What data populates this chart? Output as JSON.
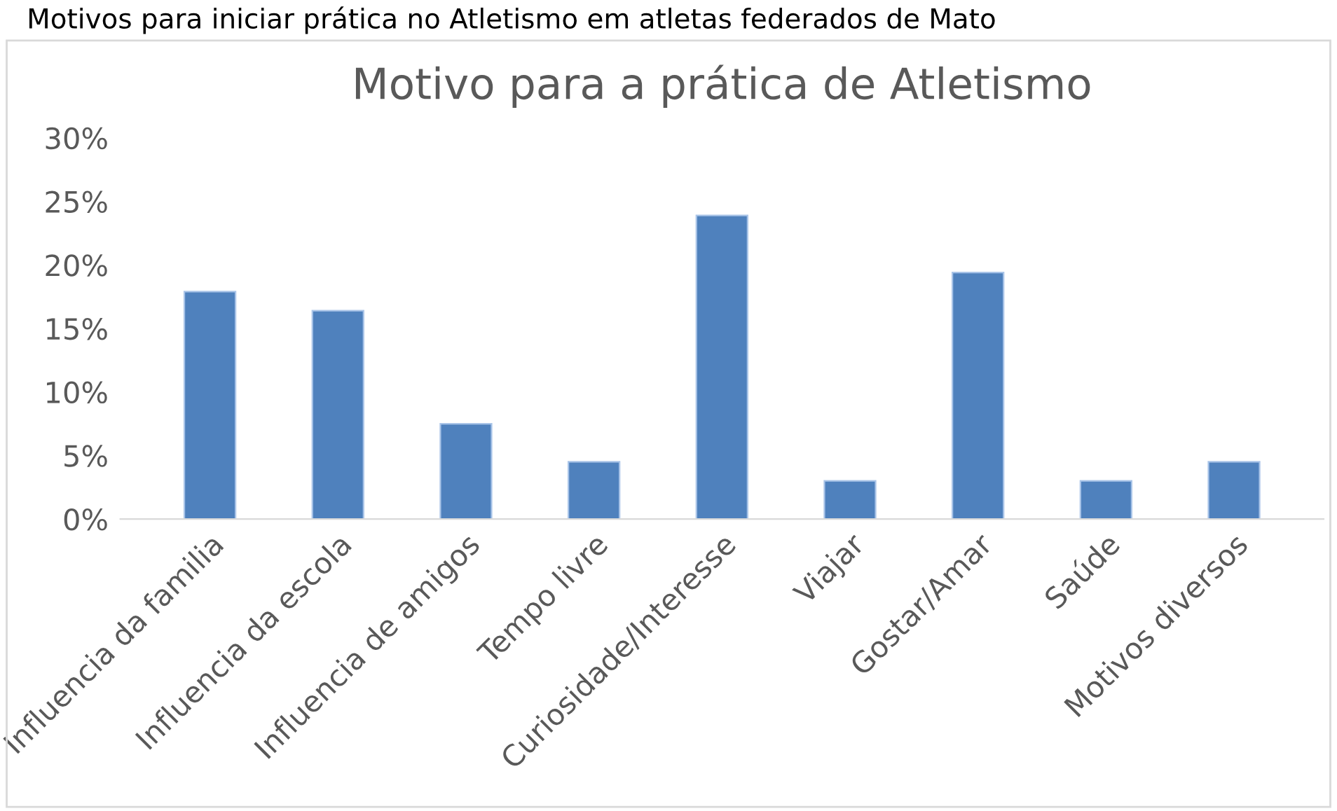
{
  "chart_data": {
    "type": "bar",
    "title": "Motivo para a prática de Atletismo",
    "annotations": [
      "Motivos para iniciar prática no Atletismo em atletas federados de Mato"
    ],
    "categories": [
      "Influencia da familia",
      "Influencia da escola",
      "Influencia de amigos",
      "Tempo livre",
      "Curiosidade/Interesse",
      "Viajar",
      "Gostar/Amar",
      "Saúde",
      "Motivos diversos"
    ],
    "values": [
      17.9,
      16.4,
      7.5,
      4.5,
      23.9,
      3.0,
      19.4,
      3.0,
      4.5
    ],
    "color": "#4f81bd",
    "ylim": [
      0,
      30
    ],
    "yticks": [
      {
        "value": 0,
        "label": "0%"
      },
      {
        "value": 5,
        "label": "5%"
      },
      {
        "value": 10,
        "label": "10%"
      },
      {
        "value": 15,
        "label": "15%"
      },
      {
        "value": 20,
        "label": "20%"
      },
      {
        "value": 25,
        "label": "25%"
      },
      {
        "value": 30,
        "label": "30%"
      }
    ],
    "grid": false,
    "legend": false
  }
}
